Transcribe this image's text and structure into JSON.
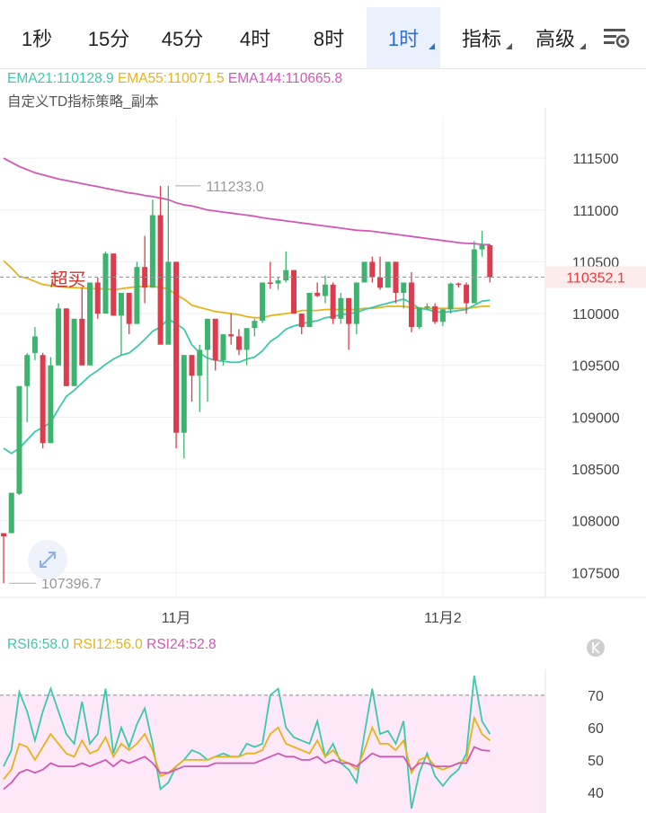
{
  "tabs": [
    {
      "label": "1秒",
      "active": false,
      "dropdown": false
    },
    {
      "label": "15分",
      "active": false,
      "dropdown": false
    },
    {
      "label": "45分",
      "active": false,
      "dropdown": false
    },
    {
      "label": "4时",
      "active": false,
      "dropdown": false
    },
    {
      "label": "8时",
      "active": false,
      "dropdown": false
    },
    {
      "label": "1时",
      "active": true,
      "dropdown": true
    },
    {
      "label": "指标",
      "active": false,
      "dropdown": true
    },
    {
      "label": "高级",
      "active": false,
      "dropdown": true
    }
  ],
  "settings_icon": "chart-settings-icon",
  "indicators": {
    "ema21": "EMA21:110128.9",
    "ema55": "EMA55:110071.5",
    "ema144": "EMA144:110665.8",
    "strategy": "自定义TD指标策略_副本"
  },
  "colors": {
    "up": "#3cb46e",
    "down": "#dc3c4b",
    "ema21": "#3cc8aa",
    "ema55": "#e6b31a",
    "ema144": "#d257b6",
    "rsi6": "#3cc8aa",
    "rsi12": "#e6b31a",
    "rsi24": "#d257b6",
    "price_tag": "#e8393f"
  },
  "chart_data": [
    {
      "type": "candlestick",
      "timeframe": "1时",
      "y_ticks": [
        111500,
        111000,
        110500,
        110000,
        109500,
        109000,
        108500,
        108000,
        107500
      ],
      "ylim": [
        107260,
        111900
      ],
      "x_labels": [
        {
          "index": 22,
          "label": "11月"
        },
        {
          "index": 56,
          "label": "11月2"
        }
      ],
      "current_price": {
        "value": 110352.1,
        "label": "110352.1"
      },
      "annotations": {
        "high": {
          "index": 21,
          "value": 111233.0,
          "label": "111233.0"
        },
        "low": {
          "index": 0,
          "value": 107396.7,
          "label": "107396.7"
        },
        "signal": {
          "index": 9,
          "text": "超买"
        }
      },
      "candles": [
        [
          107880,
          107880,
          107396.7,
          107850
        ],
        [
          107880,
          108270,
          107880,
          108270
        ],
        [
          108260,
          109300,
          108250,
          109300
        ],
        [
          109300,
          109620,
          108950,
          109600
        ],
        [
          109620,
          109870,
          109550,
          109780
        ],
        [
          109600,
          109620,
          108700,
          108750
        ],
        [
          108750,
          109580,
          108750,
          109500
        ],
        [
          109500,
          110100,
          109500,
          110050
        ],
        [
          110050,
          110050,
          109300,
          109300
        ],
        [
          109300,
          109950,
          109300,
          109950
        ],
        [
          109950,
          110250,
          109500,
          109500
        ],
        [
          109500,
          110300,
          109500,
          110300
        ],
        [
          110300,
          110350,
          109950,
          110000
        ],
        [
          110000,
          110600,
          110000,
          110580
        ],
        [
          110580,
          110580,
          109980,
          109980
        ],
        [
          109980,
          110200,
          109600,
          110200
        ],
        [
          110200,
          110200,
          109800,
          109900
        ],
        [
          109900,
          110500,
          109900,
          110450
        ],
        [
          110450,
          110750,
          110100,
          110250
        ],
        [
          110250,
          111100,
          110250,
          110950
        ],
        [
          110950,
          111233,
          109700,
          109700
        ],
        [
          109700,
          111233,
          109700,
          110500
        ],
        [
          110500,
          110500,
          108700,
          108850
        ],
        [
          108850,
          109600,
          108600,
          109600
        ],
        [
          109600,
          109600,
          109150,
          109400
        ],
        [
          109400,
          109700,
          109050,
          109650
        ],
        [
          109650,
          109950,
          109150,
          109950
        ],
        [
          109950,
          109950,
          109450,
          109550
        ],
        [
          109550,
          109800,
          109500,
          109800
        ],
        [
          109800,
          110000,
          109700,
          109780
        ],
        [
          109780,
          109850,
          109600,
          109650
        ],
        [
          109650,
          109860,
          109500,
          109860
        ],
        [
          109860,
          109950,
          109780,
          109930
        ],
        [
          109930,
          110300,
          109910,
          110300
        ],
        [
          110300,
          110500,
          110240,
          110290
        ],
        [
          110290,
          110350,
          110230,
          110320
        ],
        [
          110320,
          110600,
          110300,
          110420
        ],
        [
          110420,
          110420,
          110000,
          110000
        ],
        [
          110000,
          110000,
          109800,
          109870
        ],
        [
          109870,
          110200,
          109870,
          110200
        ],
        [
          110200,
          110300,
          110160,
          110170
        ],
        [
          110170,
          110370,
          110100,
          110280
        ],
        [
          110280,
          110300,
          109900,
          109950
        ],
        [
          109950,
          110200,
          109900,
          110150
        ],
        [
          110150,
          110150,
          109650,
          109900
        ],
        [
          109900,
          110300,
          109800,
          110300
        ],
        [
          110300,
          110500,
          110300,
          110500
        ],
        [
          110500,
          110550,
          110300,
          110350
        ],
        [
          110350,
          110550,
          110230,
          110250
        ],
        [
          110250,
          110500,
          110250,
          110500
        ],
        [
          110500,
          110500,
          110100,
          110200
        ],
        [
          110200,
          110300,
          110050,
          110300
        ],
        [
          110300,
          110400,
          109820,
          109870
        ],
        [
          109870,
          110050,
          109850,
          110060
        ],
        [
          110060,
          110100,
          110040,
          110070
        ],
        [
          110070,
          110100,
          109900,
          109920
        ],
        [
          109920,
          110050,
          109880,
          110040
        ],
        [
          110040,
          110300,
          110000,
          110290
        ],
        [
          110290,
          110300,
          110250,
          110280
        ],
        [
          110280,
          110300,
          110000,
          110100
        ],
        [
          110100,
          110700,
          110100,
          110620
        ],
        [
          110620,
          110800,
          110550,
          110660
        ],
        [
          110660,
          110670,
          110300,
          110352.1
        ]
      ],
      "ema21": [
        108700,
        108650,
        108700,
        108780,
        108860,
        108900,
        108950,
        109080,
        109200,
        109260,
        109330,
        109400,
        109450,
        109510,
        109560,
        109600,
        109620,
        109680,
        109750,
        109830,
        109870,
        109950,
        109900,
        109850,
        109700,
        109620,
        109570,
        109550,
        109540,
        109530,
        109530,
        109560,
        109580,
        109640,
        109730,
        109780,
        109850,
        109880,
        109900,
        109920,
        109930,
        109960,
        109970,
        109990,
        110000,
        110010,
        110040,
        110060,
        110080,
        110100,
        110120,
        110140,
        110100,
        110050,
        110040,
        110020,
        110010,
        110020,
        110030,
        110040,
        110080,
        110120,
        110128.9
      ],
      "ema55": [
        110510,
        110440,
        110360,
        110340,
        110310,
        110280,
        110270,
        110260,
        110255,
        110250,
        110248,
        110240,
        110240,
        110238,
        110230,
        110240,
        110250,
        110260,
        110262,
        110265,
        110250,
        110240,
        110180,
        110140,
        110080,
        110060,
        110040,
        110020,
        110010,
        110000,
        109990,
        109970,
        109960,
        109960,
        109980,
        109990,
        110000,
        110010,
        110030,
        110030,
        110030,
        110040,
        110040,
        110040,
        110040,
        110040,
        110050,
        110050,
        110060,
        110070,
        110070,
        110070,
        110060,
        110050,
        110050,
        110050,
        110050,
        110050,
        110050,
        110050,
        110060,
        110070,
        110071.5
      ],
      "ema144": [
        111500,
        111460,
        111420,
        111390,
        111360,
        111340,
        111320,
        111300,
        111285,
        111270,
        111255,
        111240,
        111225,
        111210,
        111195,
        111180,
        111165,
        111155,
        111140,
        111130,
        111115,
        111100,
        111070,
        111050,
        111040,
        111020,
        111000,
        110990,
        110980,
        110970,
        110960,
        110950,
        110940,
        110925,
        110915,
        110905,
        110895,
        110885,
        110875,
        110865,
        110855,
        110845,
        110835,
        110825,
        110815,
        110805,
        110800,
        110795,
        110785,
        110775,
        110765,
        110755,
        110745,
        110735,
        110725,
        110715,
        110705,
        110695,
        110685,
        110678,
        110675,
        110668,
        110665.8
      ]
    },
    {
      "type": "line",
      "title": "RSI",
      "y_ticks": [
        70,
        60,
        50,
        40
      ],
      "ylim": [
        35,
        78
      ],
      "overbought": 70,
      "series": [
        {
          "name": "RSI6",
          "label": "RSI6:58.0",
          "values": [
            48,
            53,
            71,
            65,
            56,
            65,
            72,
            65,
            58,
            55,
            68,
            55,
            58,
            72,
            52,
            60,
            54,
            61,
            66,
            55,
            41,
            43,
            48,
            50,
            53,
            52,
            50,
            51,
            52,
            51,
            51,
            55,
            54,
            55,
            70,
            72,
            60,
            57,
            56,
            55,
            62,
            51,
            55,
            49,
            47,
            43,
            58,
            72,
            58,
            59,
            55,
            62,
            35,
            46,
            52,
            45,
            42,
            45,
            47,
            52,
            76,
            62,
            58
          ]
        },
        {
          "name": "RSI12",
          "label": "RSI12:56.0",
          "values": [
            44,
            47,
            55,
            54,
            50,
            54,
            58,
            55,
            52,
            51,
            56,
            52,
            53,
            57,
            51,
            55,
            53,
            55,
            58,
            53,
            45,
            46,
            48,
            50,
            50,
            50,
            50,
            51,
            51,
            51,
            51,
            52,
            52,
            53,
            58,
            60,
            55,
            54,
            53,
            52,
            56,
            51,
            53,
            50,
            49,
            47,
            53,
            60,
            55,
            55,
            53,
            56,
            46,
            50,
            51,
            48,
            47,
            48,
            49,
            50,
            63,
            58,
            56
          ]
        },
        {
          "name": "RSI24",
          "label": "RSI24:52.8",
          "values": [
            41,
            43,
            46,
            47,
            46,
            47,
            49,
            48,
            48,
            48,
            49,
            48,
            49,
            50,
            48,
            50,
            49,
            50,
            51,
            49,
            46,
            46,
            47,
            48,
            48,
            48,
            48,
            49,
            49,
            49,
            49,
            49,
            49,
            50,
            51,
            52,
            51,
            51,
            50,
            50,
            51,
            49,
            50,
            49,
            49,
            48,
            50,
            52,
            51,
            51,
            51,
            51,
            47,
            49,
            49,
            48,
            48,
            48,
            49,
            49,
            54,
            53,
            52.8
          ]
        }
      ]
    }
  ]
}
